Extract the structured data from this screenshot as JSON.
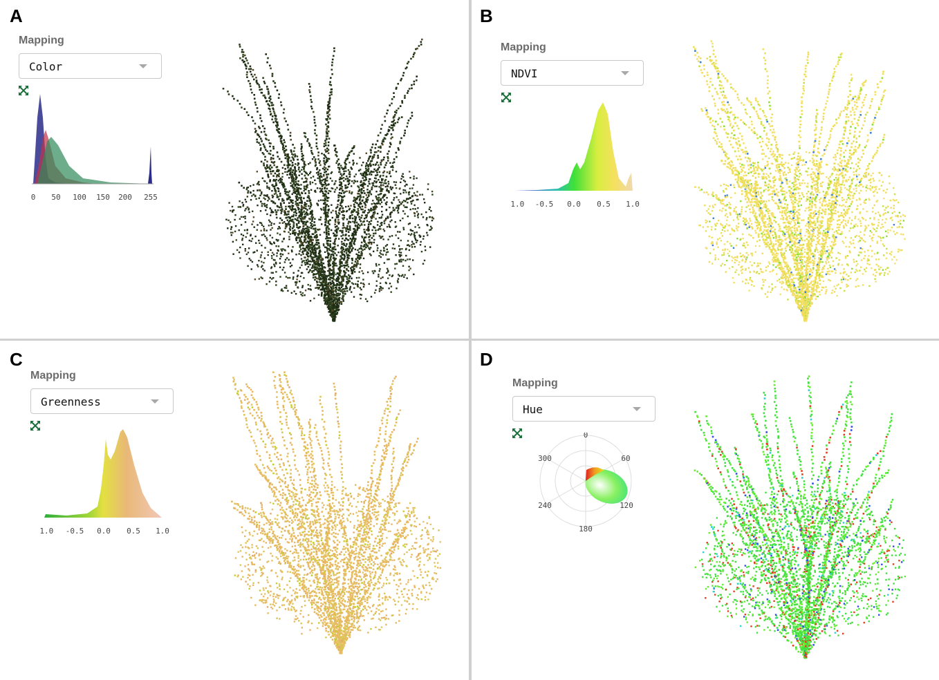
{
  "panels": [
    {
      "letter": "A",
      "mapping_label": "Mapping",
      "mapping_value": "Color",
      "histogram": {
        "type": "color-channels",
        "x_ticks": [
          "0",
          "50",
          "100",
          "150",
          "200",
          "255"
        ],
        "series_colors": [
          "#2b2b8a",
          "#c0334a",
          "#2f8a5a"
        ]
      },
      "point_cloud_colors": [
        "#1e2d14",
        "#2c3f1c",
        "#3a4a25",
        "#5a4a2a",
        "#243a18"
      ]
    },
    {
      "letter": "B",
      "mapping_label": "Mapping",
      "mapping_value": "NDVI",
      "histogram": {
        "type": "ndvi",
        "x_ticks": [
          "-1.0",
          "-0.5",
          "0.0",
          "0.5",
          "1.0"
        ]
      },
      "point_cloud_colors": [
        "#f0dd5a",
        "#f5e070",
        "#c8e040",
        "#8fe030",
        "#3f7fd0"
      ]
    },
    {
      "letter": "C",
      "mapping_label": "Mapping",
      "mapping_value": "Greenness",
      "histogram": {
        "type": "greenness",
        "x_ticks": [
          "-1.0",
          "-0.5",
          "0.0",
          "0.5",
          "1.0"
        ]
      },
      "point_cloud_colors": [
        "#e8b860",
        "#e4c468",
        "#d8c850",
        "#c8cc30",
        "#e0a870"
      ]
    },
    {
      "letter": "D",
      "mapping_label": "Mapping",
      "mapping_value": "Hue",
      "polar": {
        "angle_labels": [
          "0",
          "60",
          "120",
          "180",
          "240",
          "300"
        ]
      },
      "point_cloud_colors": [
        "#44e040",
        "#66ee30",
        "#e04020",
        "#3050e0",
        "#30d0d0"
      ]
    }
  ]
}
